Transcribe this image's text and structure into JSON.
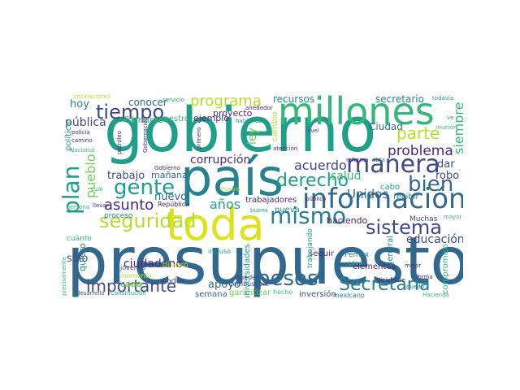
{
  "palette": {
    "purple": "#482878",
    "indigo": "#3e4989",
    "blue": "#31688e",
    "teal": "#26828e",
    "green": "#1f9e89",
    "lightgreen": "#35b779",
    "lime": "#6ece58",
    "yellowgreen": "#b5de2b",
    "yellow": "#dde318"
  },
  "words": [
    {
      "id": "presupuesto",
      "text": "presupuesto",
      "c": "blue"
    },
    {
      "id": "gobierno",
      "text": "gobierno",
      "c": "green"
    },
    {
      "id": "pais",
      "text": "país",
      "c": "teal"
    },
    {
      "id": "toda",
      "text": "toda",
      "c": "yellow"
    },
    {
      "id": "millones",
      "text": "millones",
      "c": "lightgreen"
    },
    {
      "id": "informacion",
      "text": "información",
      "c": "blue"
    },
    {
      "id": "manera",
      "text": "manera",
      "c": "indigo"
    },
    {
      "id": "mismo",
      "text": "mismo",
      "c": "teal"
    },
    {
      "id": "seguridad",
      "text": "seguridad",
      "c": "yellowgreen"
    },
    {
      "id": "tiempo",
      "text": "tiempo",
      "c": "indigo"
    },
    {
      "id": "pesos",
      "text": "pesos",
      "c": "blue"
    },
    {
      "id": "secretaria",
      "text": "Secretaría",
      "c": "teal"
    },
    {
      "id": "sistema",
      "text": "sistema",
      "c": "indigo"
    },
    {
      "id": "bien",
      "text": "bien",
      "c": "blue"
    },
    {
      "id": "derecho",
      "text": "derecho",
      "c": "green"
    },
    {
      "id": "gente",
      "text": "gente",
      "c": "green"
    },
    {
      "id": "plan",
      "text": "plan",
      "c": "green"
    },
    {
      "id": "importante",
      "text": "importante",
      "c": "indigo"
    },
    {
      "id": "programa",
      "text": "programa",
      "c": "yellowgreen"
    },
    {
      "id": "parte",
      "text": "parte",
      "c": "yellowgreen"
    },
    {
      "id": "problema",
      "text": "problema",
      "c": "purple"
    },
    {
      "id": "asunto",
      "text": "asunto",
      "c": "purple"
    },
    {
      "id": "acuerdo",
      "text": "acuerdo",
      "c": "indigo"
    },
    {
      "id": "pueblo",
      "text": "pueblo",
      "c": "lime"
    },
    {
      "id": "anos",
      "text": "años",
      "c": "green"
    },
    {
      "id": "corrupcion",
      "text": "corrupción",
      "c": "purple"
    },
    {
      "id": "ciudadano",
      "text": "ciudadano",
      "c": "purple"
    },
    {
      "id": "trabajo",
      "text": "trabajo",
      "c": "indigo"
    },
    {
      "id": "siempre",
      "text": "siempre",
      "c": "lightgreen"
    },
    {
      "id": "unidos",
      "text": "Unidos",
      "c": "blue"
    },
    {
      "id": "educacion",
      "text": "educación",
      "c": "indigo"
    },
    {
      "id": "nuevo",
      "text": "nuevo",
      "c": "blue"
    },
    {
      "id": "salud",
      "text": "salud",
      "c": "lightgreen"
    },
    {
      "id": "robo",
      "text": "robo",
      "c": "indigo"
    },
    {
      "id": "dar",
      "text": "dar",
      "c": "indigo"
    },
    {
      "id": "ley",
      "text": "ley",
      "c": "lime"
    },
    {
      "id": "publica",
      "text": "pública",
      "c": "indigo"
    },
    {
      "id": "hoy",
      "text": "hoy",
      "c": "teal"
    },
    {
      "id": "solo",
      "text": "sólo",
      "c": "indigo"
    },
    {
      "id": "apoyo",
      "text": "apoyo",
      "c": "blue"
    },
    {
      "id": "conocer",
      "text": "conocer",
      "c": "blue"
    },
    {
      "id": "recursos",
      "text": "recursos",
      "c": "teal"
    },
    {
      "id": "secretario",
      "text": "secretario",
      "c": "teal"
    },
    {
      "id": "ciudad",
      "text": "Ciudad",
      "c": "blue"
    },
    {
      "id": "manana",
      "text": "mañana",
      "c": "blue"
    },
    {
      "id": "ejemplo",
      "text": "ejemplo",
      "c": "purple"
    },
    {
      "id": "proyecto",
      "text": "proyecto",
      "c": "purple"
    },
    {
      "id": "camaras",
      "text": "Cámaras",
      "c": "lightgreen"
    },
    {
      "id": "maestro",
      "text": "maestro",
      "c": "lightgreen"
    },
    {
      "id": "haciendo",
      "text": "haciendo",
      "c": "purple"
    },
    {
      "id": "seguir",
      "text": "seguir",
      "c": "purple"
    },
    {
      "id": "cabo",
      "text": "cabo",
      "c": "green"
    },
    {
      "id": "recibir",
      "text": "recibir",
      "c": "teal"
    },
    {
      "id": "nueva",
      "text": "nueva",
      "c": "teal"
    },
    {
      "id": "trabajadores",
      "text": "trabajadores",
      "c": "purple"
    },
    {
      "id": "cada",
      "text": "cada",
      "c": "lightgreen"
    },
    {
      "id": "quiero",
      "text": "quiero",
      "c": "teal"
    },
    {
      "id": "dinero",
      "text": "dinero",
      "c": "yellowgreen"
    },
    {
      "id": "poder",
      "text": "poder",
      "c": "indigo"
    },
    {
      "id": "semana",
      "text": "semana",
      "c": "blue"
    },
    {
      "id": "garantizar",
      "text": "garantizar",
      "c": "lime"
    },
    {
      "id": "inversion",
      "text": "inversión",
      "c": "indigo"
    },
    {
      "id": "elementos",
      "text": "elementos",
      "c": "purple"
    },
    {
      "id": "compromiso",
      "text": "compromiso",
      "c": "lightgreen"
    },
    {
      "id": "general",
      "text": "general",
      "c": "teal"
    },
    {
      "id": "universidades",
      "text": "universidades",
      "c": "green"
    },
    {
      "id": "politica",
      "text": "política",
      "c": "green"
    },
    {
      "id": "cambio",
      "text": "cambio",
      "c": "yellowgreen"
    },
    {
      "id": "proceso",
      "text": "proceso",
      "c": "teal"
    },
    {
      "id": "cuanto",
      "text": "cuánto",
      "c": "lightgreen"
    },
    {
      "id": "muchas",
      "text": "Muchas",
      "c": "indigo"
    },
    {
      "id": "pemex",
      "text": "Pemex",
      "c": "teal"
    },
    {
      "id": "trabajando",
      "text": "trabajando",
      "c": "green"
    },
    {
      "id": "jovenes",
      "text": "jóvenes",
      "c": "indigo"
    },
    {
      "id": "momento",
      "text": "momento",
      "c": "yellowgreen"
    },
    {
      "id": "republica",
      "text": "República",
      "c": "purple"
    },
    {
      "id": "pueden",
      "text": "pueden",
      "c": "indigo"
    },
    {
      "id": "combustible",
      "text": "combustible",
      "c": "indigo"
    },
    {
      "id": "cosa",
      "text": "cosa",
      "c": "lightgreen"
    },
    {
      "id": "incluso",
      "text": "incluso",
      "c": "green"
    },
    {
      "id": "mexicano",
      "text": "mexicano",
      "c": "teal"
    },
    {
      "id": "hecho",
      "text": "hecho",
      "c": "lightgreen"
    },
    {
      "id": "constitucion",
      "text": "Constitución",
      "c": "green"
    },
    {
      "id": "desarrollo",
      "text": "desarrollo",
      "c": "indigo"
    },
    {
      "id": "hacienda",
      "text": "Hacienda",
      "c": "lightgreen"
    },
    {
      "id": "forma",
      "text": "forma",
      "c": "purple"
    },
    {
      "id": "diciembre",
      "text": "diciembre",
      "c": "purple"
    },
    {
      "id": "puedo",
      "text": "puedo",
      "c": "teal"
    },
    {
      "id": "mejor",
      "text": "mejor",
      "c": "purple"
    },
    {
      "id": "nivel",
      "text": "nivel",
      "c": "indigo"
    },
    {
      "id": "publico",
      "text": "público",
      "c": "purple"
    },
    {
      "id": "mayor",
      "text": "mayor",
      "c": "lightgreen"
    },
    {
      "id": "reunion",
      "text": "reunión",
      "c": "lightgreen"
    },
    {
      "id": "todavia",
      "text": "todavía",
      "c": "green"
    },
    {
      "id": "reforma",
      "text": "reforma",
      "c": "purple"
    },
    {
      "id": "obra",
      "text": "obra",
      "c": "teal"
    },
    {
      "id": "atencion",
      "text": "atención",
      "c": "purple"
    },
    {
      "id": "gobernacion",
      "text": "Gobernación",
      "c": "purple"
    },
    {
      "id": "gobierno_small",
      "text": "Gobierno",
      "c": "purple"
    },
    {
      "id": "alrededor",
      "text": "alrededor",
      "c": "purple"
    },
    {
      "id": "hablando",
      "text": "hablando",
      "c": "green"
    },
    {
      "id": "servicio",
      "text": "servicio",
      "c": "green"
    },
    {
      "id": "instalaciones",
      "text": "instalaciones",
      "c": "yellowgreen"
    },
    {
      "id": "policia",
      "text": "policía",
      "c": "purple"
    },
    {
      "id": "camino",
      "text": "camino",
      "c": "purple"
    },
    {
      "id": "nacional",
      "text": "Nacional",
      "c": "lightgreen"
    },
    {
      "id": "petroleo",
      "text": "petróleo",
      "c": "purple"
    },
    {
      "id": "primero",
      "text": "primero",
      "c": "purple"
    },
    {
      "id": "ir",
      "text": "ir",
      "c": "indigo"
    },
    {
      "id": "buena",
      "text": "buena",
      "c": "green"
    },
    {
      "id": "puebla",
      "text": "Puebla",
      "c": "yellowgreen"
    },
    {
      "id": "llevar",
      "text": "llevar",
      "c": "purple"
    },
    {
      "id": "persona",
      "text": "persona",
      "c": "lightgreen"
    },
    {
      "id": "cual",
      "text": "cuál",
      "c": "lightgreen"
    },
    {
      "id": "precisamente",
      "text": "precisamente",
      "c": "lightgreen"
    },
    {
      "id": "sueldo",
      "text": "sueldo",
      "c": "yellowgreen"
    },
    {
      "id": "ve",
      "text": "ve",
      "c": "green"
    }
  ]
}
